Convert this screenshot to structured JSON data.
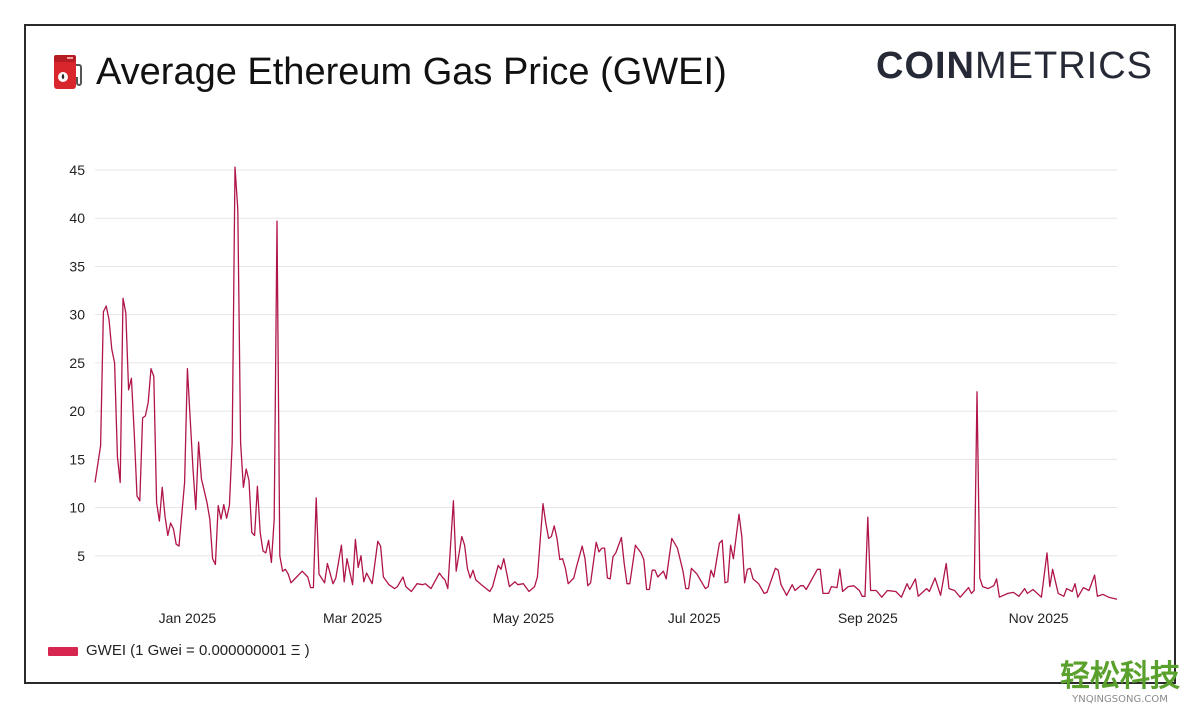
{
  "header": {
    "title": "Average Ethereum Gas Price (GWEI)",
    "icon": "fuel-pump-icon",
    "logo_bold": "COIN",
    "logo_light": "METRICS"
  },
  "watermark": {
    "text": "轻松科技",
    "sub": "YNQINGSONG.COM"
  },
  "colors": {
    "line": "#b0154a",
    "legend": "#d6264f",
    "grid": "#e6e6e6"
  },
  "chart_data": {
    "type": "line",
    "title": "Average Ethereum Gas Price (GWEI)",
    "xlabel": "",
    "ylabel": "",
    "ylim": [
      0,
      45
    ],
    "xlim": [
      "2024-11-29",
      "2025-11-29"
    ],
    "grid": true,
    "legend_position": "bottom-left",
    "y_ticks": [
      "5",
      "10",
      "15",
      "20",
      "25",
      "30",
      "35",
      "40",
      "45"
    ],
    "x_ticks": [
      {
        "date": "2025-01-01",
        "label": "Jan 2025"
      },
      {
        "date": "2025-03-01",
        "label": "Mar 2025"
      },
      {
        "date": "2025-05-01",
        "label": "May 2025"
      },
      {
        "date": "2025-07-01",
        "label": "Jul 2025"
      },
      {
        "date": "2025-09-01",
        "label": "Sep 2025"
      },
      {
        "date": "2025-11-01",
        "label": "Nov 2025"
      }
    ],
    "series": [
      {
        "name": "GWEI (1 Gwei = 0.000000001 Ξ )",
        "points": [
          [
            "2024-11-29",
            12.6
          ],
          [
            "2024-12-01",
            16.4
          ],
          [
            "2024-12-02",
            30.3
          ],
          [
            "2024-12-03",
            30.9
          ],
          [
            "2024-12-04",
            29.5
          ],
          [
            "2024-12-05",
            26.4
          ],
          [
            "2024-12-06",
            25
          ],
          [
            "2024-12-07",
            15.3
          ],
          [
            "2024-12-08",
            12.6
          ],
          [
            "2024-12-09",
            31.7
          ],
          [
            "2024-12-10",
            30.2
          ],
          [
            "2024-12-11",
            22.2
          ],
          [
            "2024-12-12",
            23.4
          ],
          [
            "2024-12-13",
            17.8
          ],
          [
            "2024-12-14",
            11.2
          ],
          [
            "2024-12-15",
            10.7
          ],
          [
            "2024-12-16",
            19.3
          ],
          [
            "2024-12-17",
            19.5
          ],
          [
            "2024-12-18",
            20.9
          ],
          [
            "2024-12-19",
            24.4
          ],
          [
            "2024-12-20",
            23.6
          ],
          [
            "2024-12-21",
            10.5
          ],
          [
            "2024-12-22",
            8.6
          ],
          [
            "2024-12-23",
            12.1
          ],
          [
            "2024-12-24",
            9.1
          ],
          [
            "2024-12-25",
            7.1
          ],
          [
            "2024-12-26",
            8.4
          ],
          [
            "2024-12-27",
            7.8
          ],
          [
            "2024-12-28",
            6.2
          ],
          [
            "2024-12-29",
            6.0
          ],
          [
            "2024-12-31",
            12.6
          ],
          [
            "2025-01-01",
            24.4
          ],
          [
            "2025-01-03",
            14
          ],
          [
            "2025-01-04",
            9.8
          ],
          [
            "2025-01-05",
            16.8
          ],
          [
            "2025-01-06",
            13
          ],
          [
            "2025-01-08",
            10.5
          ],
          [
            "2025-01-09",
            8.8
          ],
          [
            "2025-01-10",
            4.7
          ],
          [
            "2025-01-11",
            4.1
          ],
          [
            "2025-01-12",
            10.2
          ],
          [
            "2025-01-13",
            8.8
          ],
          [
            "2025-01-14",
            10.3
          ],
          [
            "2025-01-15",
            8.9
          ],
          [
            "2025-01-16",
            10.2
          ],
          [
            "2025-01-17",
            16.7
          ],
          [
            "2025-01-18",
            45.3
          ],
          [
            "2025-01-19",
            40.9
          ],
          [
            "2025-01-20",
            16.7
          ],
          [
            "2025-01-21",
            12.1
          ],
          [
            "2025-01-22",
            14
          ],
          [
            "2025-01-23",
            12.8
          ],
          [
            "2025-01-24",
            7.4
          ],
          [
            "2025-01-25",
            7.1
          ],
          [
            "2025-01-26",
            12.2
          ],
          [
            "2025-01-27",
            7.4
          ],
          [
            "2025-01-28",
            5.5
          ],
          [
            "2025-01-29",
            5.3
          ],
          [
            "2025-01-30",
            6.6
          ],
          [
            "2025-01-31",
            4.3
          ],
          [
            "2025-02-01",
            8.8
          ],
          [
            "2025-02-02",
            39.7
          ],
          [
            "2025-02-03",
            5
          ],
          [
            "2025-02-04",
            3.4
          ],
          [
            "2025-02-05",
            3.6
          ],
          [
            "2025-02-06",
            3.1
          ],
          [
            "2025-02-07",
            2.2
          ],
          [
            "2025-02-09",
            2.8
          ],
          [
            "2025-02-11",
            3.4
          ],
          [
            "2025-02-13",
            2.8
          ],
          [
            "2025-02-14",
            1.7
          ],
          [
            "2025-02-15",
            1.7
          ],
          [
            "2025-02-16",
            11
          ],
          [
            "2025-02-17",
            3.1
          ],
          [
            "2025-02-19",
            2.2
          ],
          [
            "2025-02-20",
            4.2
          ],
          [
            "2025-02-22",
            2.1
          ],
          [
            "2025-02-23",
            2.7
          ],
          [
            "2025-02-25",
            6.1
          ],
          [
            "2025-02-26",
            2.3
          ],
          [
            "2025-02-27",
            4.7
          ],
          [
            "2025-03-01",
            2.0
          ],
          [
            "2025-03-02",
            6.7
          ],
          [
            "2025-03-03",
            3.8
          ],
          [
            "2025-03-04",
            5.0
          ],
          [
            "2025-03-05",
            2.3
          ],
          [
            "2025-03-06",
            3.2
          ],
          [
            "2025-03-08",
            2.1
          ],
          [
            "2025-03-10",
            6.5
          ],
          [
            "2025-03-11",
            6.0
          ],
          [
            "2025-03-12",
            2.8
          ],
          [
            "2025-03-14",
            2.0
          ],
          [
            "2025-03-16",
            1.6
          ],
          [
            "2025-03-17",
            1.8
          ],
          [
            "2025-03-19",
            2.8
          ],
          [
            "2025-03-20",
            1.8
          ],
          [
            "2025-03-22",
            1.3
          ],
          [
            "2025-03-24",
            2.1
          ],
          [
            "2025-03-26",
            2.0
          ],
          [
            "2025-03-27",
            2.1
          ],
          [
            "2025-03-29",
            1.6
          ],
          [
            "2025-04-01",
            3.2
          ],
          [
            "2025-04-02",
            2.8
          ],
          [
            "2025-04-03",
            2.5
          ],
          [
            "2025-04-04",
            1.6
          ],
          [
            "2025-04-06",
            10.7
          ],
          [
            "2025-04-07",
            3.4
          ],
          [
            "2025-04-09",
            7.0
          ],
          [
            "2025-04-10",
            6.1
          ],
          [
            "2025-04-11",
            3.7
          ],
          [
            "2025-04-12",
            2.7
          ],
          [
            "2025-04-13",
            3.5
          ],
          [
            "2025-04-14",
            2.5
          ],
          [
            "2025-04-16",
            2.0
          ],
          [
            "2025-04-19",
            1.3
          ],
          [
            "2025-04-20",
            1.8
          ],
          [
            "2025-04-22",
            4.0
          ],
          [
            "2025-04-23",
            3.6
          ],
          [
            "2025-04-24",
            4.7
          ],
          [
            "2025-04-26",
            1.8
          ],
          [
            "2025-04-28",
            2.3
          ],
          [
            "2025-04-29",
            2.0
          ],
          [
            "2025-05-01",
            2.1
          ],
          [
            "2025-05-03",
            1.3
          ],
          [
            "2025-05-05",
            1.8
          ],
          [
            "2025-05-06",
            2.8
          ],
          [
            "2025-05-08",
            10.4
          ],
          [
            "2025-05-09",
            8.4
          ],
          [
            "2025-05-10",
            6.8
          ],
          [
            "2025-05-11",
            7.0
          ],
          [
            "2025-05-12",
            8.1
          ],
          [
            "2025-05-13",
            6.8
          ],
          [
            "2025-05-14",
            4.6
          ],
          [
            "2025-05-15",
            4.7
          ],
          [
            "2025-05-16",
            3.7
          ],
          [
            "2025-05-17",
            2.1
          ],
          [
            "2025-05-19",
            2.7
          ],
          [
            "2025-05-20",
            3.9
          ],
          [
            "2025-05-22",
            6.0
          ],
          [
            "2025-05-23",
            4.7
          ],
          [
            "2025-05-24",
            1.9
          ],
          [
            "2025-05-25",
            2.2
          ],
          [
            "2025-05-27",
            6.4
          ],
          [
            "2025-05-28",
            5.4
          ],
          [
            "2025-05-29",
            5.8
          ],
          [
            "2025-05-30",
            5.8
          ],
          [
            "2025-05-31",
            2.7
          ],
          [
            "2025-06-01",
            2.6
          ],
          [
            "2025-06-02",
            4.9
          ],
          [
            "2025-06-03",
            5.3
          ],
          [
            "2025-06-05",
            6.9
          ],
          [
            "2025-06-06",
            4.2
          ],
          [
            "2025-06-07",
            2.1
          ],
          [
            "2025-06-08",
            2.1
          ],
          [
            "2025-06-10",
            6.1
          ],
          [
            "2025-06-12",
            5.3
          ],
          [
            "2025-06-13",
            4.6
          ],
          [
            "2025-06-14",
            1.5
          ],
          [
            "2025-06-15",
            1.5
          ],
          [
            "2025-06-16",
            3.5
          ],
          [
            "2025-06-17",
            3.5
          ],
          [
            "2025-06-18",
            2.8
          ],
          [
            "2025-06-20",
            3.4
          ],
          [
            "2025-06-21",
            2.6
          ],
          [
            "2025-06-23",
            6.8
          ],
          [
            "2025-06-25",
            5.8
          ],
          [
            "2025-06-27",
            3.4
          ],
          [
            "2025-06-28",
            1.6
          ],
          [
            "2025-06-29",
            1.6
          ],
          [
            "2025-06-30",
            3.7
          ],
          [
            "2025-07-02",
            3.1
          ],
          [
            "2025-07-03",
            2.6
          ],
          [
            "2025-07-05",
            1.6
          ],
          [
            "2025-07-06",
            1.8
          ],
          [
            "2025-07-07",
            3.5
          ],
          [
            "2025-07-08",
            2.8
          ],
          [
            "2025-07-10",
            6.3
          ],
          [
            "2025-07-11",
            6.6
          ],
          [
            "2025-07-12",
            2.2
          ],
          [
            "2025-07-13",
            2.3
          ],
          [
            "2025-07-14",
            6.1
          ],
          [
            "2025-07-15",
            4.7
          ],
          [
            "2025-07-17",
            9.3
          ],
          [
            "2025-07-18",
            7.0
          ],
          [
            "2025-07-19",
            2.2
          ],
          [
            "2025-07-20",
            3.6
          ],
          [
            "2025-07-21",
            3.7
          ],
          [
            "2025-07-22",
            2.6
          ],
          [
            "2025-07-24",
            2.1
          ],
          [
            "2025-07-26",
            1.1
          ],
          [
            "2025-07-27",
            1.2
          ],
          [
            "2025-07-30",
            3.7
          ],
          [
            "2025-07-31",
            3.5
          ],
          [
            "2025-08-01",
            2.0
          ],
          [
            "2025-08-03",
            0.9
          ],
          [
            "2025-08-05",
            2.0
          ],
          [
            "2025-08-06",
            1.4
          ],
          [
            "2025-08-08",
            1.9
          ],
          [
            "2025-08-09",
            1.9
          ],
          [
            "2025-08-10",
            1.5
          ],
          [
            "2025-08-14",
            3.6
          ],
          [
            "2025-08-15",
            3.6
          ],
          [
            "2025-08-16",
            1.1
          ],
          [
            "2025-08-18",
            1.1
          ],
          [
            "2025-08-19",
            1.8
          ],
          [
            "2025-08-21",
            1.7
          ],
          [
            "2025-08-22",
            3.6
          ],
          [
            "2025-08-23",
            1.3
          ],
          [
            "2025-08-25",
            1.8
          ],
          [
            "2025-08-27",
            1.9
          ],
          [
            "2025-08-29",
            1.4
          ],
          [
            "2025-08-30",
            0.8
          ],
          [
            "2025-08-31",
            0.8
          ],
          [
            "2025-09-01",
            9.0
          ],
          [
            "2025-09-02",
            1.4
          ],
          [
            "2025-09-04",
            1.4
          ],
          [
            "2025-09-06",
            0.7
          ],
          [
            "2025-09-08",
            1.4
          ],
          [
            "2025-09-11",
            1.3
          ],
          [
            "2025-09-13",
            0.7
          ],
          [
            "2025-09-15",
            2.1
          ],
          [
            "2025-09-16",
            1.5
          ],
          [
            "2025-09-18",
            2.6
          ],
          [
            "2025-09-19",
            0.8
          ],
          [
            "2025-09-22",
            1.6
          ],
          [
            "2025-09-23",
            1.3
          ],
          [
            "2025-09-25",
            2.7
          ],
          [
            "2025-09-27",
            0.9
          ],
          [
            "2025-09-29",
            4.2
          ],
          [
            "2025-09-30",
            1.6
          ],
          [
            "2025-10-02",
            1.4
          ],
          [
            "2025-10-04",
            0.7
          ],
          [
            "2025-10-07",
            1.7
          ],
          [
            "2025-10-08",
            1.1
          ],
          [
            "2025-10-09",
            1.4
          ],
          [
            "2025-10-10",
            22.0
          ],
          [
            "2025-10-11",
            2.7
          ],
          [
            "2025-10-12",
            1.8
          ],
          [
            "2025-10-14",
            1.6
          ],
          [
            "2025-10-16",
            1.9
          ],
          [
            "2025-10-17",
            2.6
          ],
          [
            "2025-10-18",
            0.7
          ],
          [
            "2025-10-21",
            1.1
          ],
          [
            "2025-10-23",
            1.2
          ],
          [
            "2025-10-25",
            0.8
          ],
          [
            "2025-10-27",
            1.6
          ],
          [
            "2025-10-28",
            1.1
          ],
          [
            "2025-10-30",
            1.5
          ],
          [
            "2025-11-02",
            0.7
          ],
          [
            "2025-11-04",
            5.3
          ],
          [
            "2025-11-05",
            1.8
          ],
          [
            "2025-11-06",
            3.6
          ],
          [
            "2025-11-08",
            1.1
          ],
          [
            "2025-11-10",
            0.8
          ],
          [
            "2025-11-11",
            1.6
          ],
          [
            "2025-11-13",
            1.3
          ],
          [
            "2025-11-14",
            2.1
          ],
          [
            "2025-11-15",
            0.7
          ],
          [
            "2025-11-17",
            1.7
          ],
          [
            "2025-11-19",
            1.4
          ],
          [
            "2025-11-21",
            3.0
          ],
          [
            "2025-11-22",
            0.8
          ],
          [
            "2025-11-24",
            1.0
          ],
          [
            "2025-11-26",
            0.7
          ],
          [
            "2025-11-29",
            0.5
          ]
        ]
      }
    ]
  }
}
